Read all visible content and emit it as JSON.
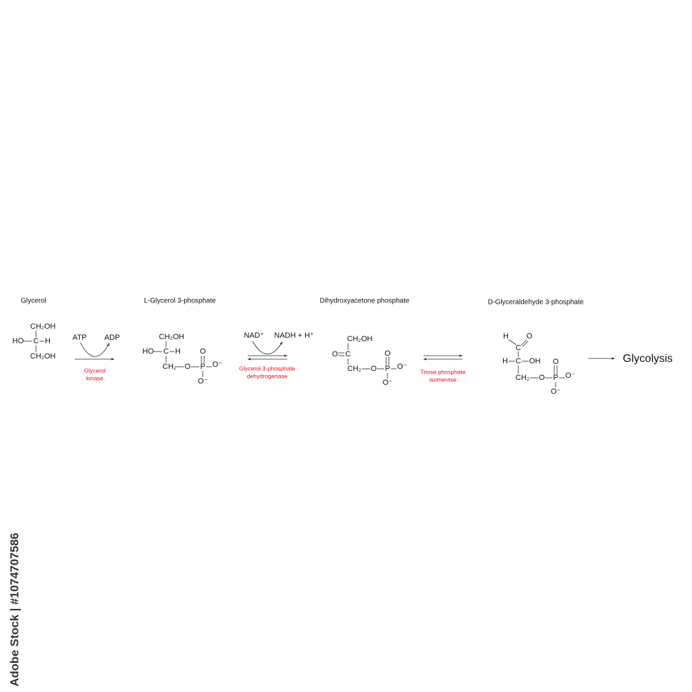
{
  "compounds": [
    {
      "name": "Glycerol",
      "atoms": [
        "CH₂OH",
        "HO",
        "C",
        "H",
        "CH₂OH"
      ]
    },
    {
      "name": "L-Glycerol 3-phosphate",
      "atoms": [
        "CH₂OH",
        "HO",
        "C",
        "H",
        "CH₂",
        "O",
        "P",
        "O⁻",
        "O",
        "O⁻"
      ]
    },
    {
      "name": "Dihydroxyacetone phosphate",
      "atoms": [
        "CH₂OH",
        "O",
        "C",
        "CH₂",
        "O",
        "P",
        "O⁻",
        "O",
        "O⁻"
      ]
    },
    {
      "name": "D-Glyceraldehyde 3-phosphate",
      "atoms": [
        "H",
        "C",
        "O",
        "H",
        "C",
        "OH",
        "CH₂",
        "O",
        "P",
        "O⁻",
        "O",
        "O⁻"
      ]
    }
  ],
  "steps": [
    {
      "cofactors": [
        "ATP",
        "ADP"
      ],
      "enzyme": [
        "Glycerol",
        "kinase"
      ]
    },
    {
      "cofactors": [
        "NAD⁺",
        "NADH + H⁺"
      ],
      "enzyme": [
        "Glycerol 3-phosphate",
        "dehydrogenase"
      ]
    },
    {
      "enzyme": [
        "Triose phosphate",
        "isomerase"
      ]
    }
  ],
  "product": "Glycolysis",
  "watermark": "Adobe Stock | #1074707586"
}
